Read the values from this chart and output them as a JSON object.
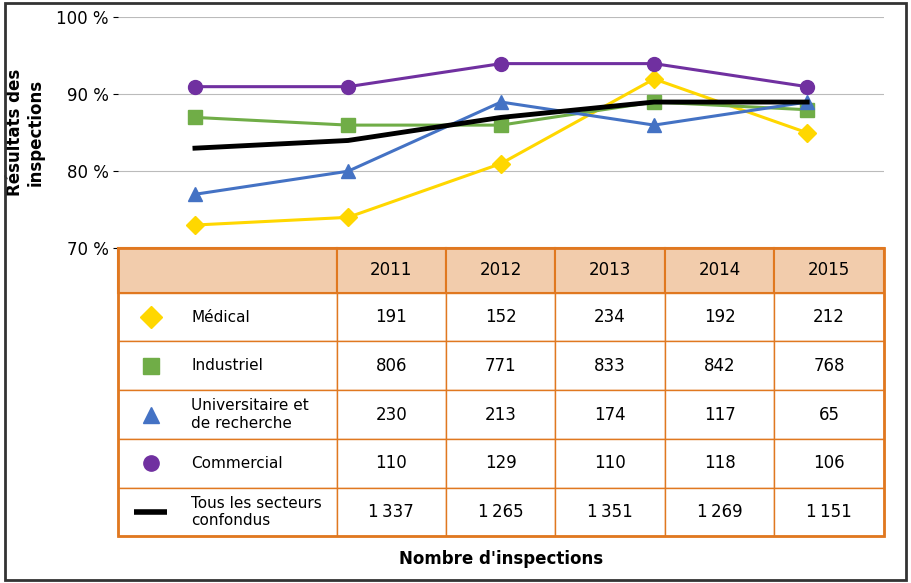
{
  "years": [
    2011,
    2012,
    2013,
    2014,
    2015
  ],
  "medical": [
    73,
    74,
    81,
    92,
    85
  ],
  "industriel": [
    87,
    86,
    86,
    89,
    88
  ],
  "universitaire": [
    77,
    80,
    89,
    86,
    89
  ],
  "commercial": [
    91,
    91,
    94,
    94,
    91
  ],
  "tous": [
    83,
    84,
    87,
    89,
    89
  ],
  "table_data": {
    "Medical": [
      191,
      152,
      234,
      192,
      212
    ],
    "Industriel": [
      806,
      771,
      833,
      842,
      768
    ],
    "Universitaire": [
      230,
      213,
      174,
      117,
      65
    ],
    "Commercial": [
      110,
      129,
      110,
      118,
      106
    ],
    "Tous": [
      1337,
      1265,
      1351,
      1269,
      1151
    ]
  },
  "colors": {
    "medical": "#FFD700",
    "industriel": "#70AD47",
    "universitaire": "#4472C4",
    "commercial": "#7030A0",
    "tous": "#000000"
  },
  "ylabel": "Résultats des\ninspections",
  "xlabel": "Nombre d'inspections",
  "ylim_min": 70,
  "ylim_max": 100,
  "yticks": [
    70,
    80,
    90,
    100
  ],
  "background_color": "#FFFFFF",
  "table_header_bg": "#F2CCAC",
  "table_header_border": "#E07820",
  "table_row_bg": "#FFFFFF",
  "outer_border_color": "#333333"
}
